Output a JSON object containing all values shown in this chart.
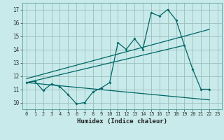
{
  "xlabel": "Humidex (Indice chaleur)",
  "background_color": "#c8eaea",
  "grid_color": "#9dbdbd",
  "line_color": "#006666",
  "spine_color": "#5a9a9a",
  "xlim": [
    -0.5,
    23.5
  ],
  "ylim": [
    9.5,
    17.5
  ],
  "xticks": [
    0,
    1,
    2,
    3,
    4,
    5,
    6,
    7,
    8,
    9,
    10,
    11,
    12,
    13,
    14,
    15,
    16,
    17,
    18,
    19,
    20,
    21,
    22,
    23
  ],
  "yticks": [
    10,
    11,
    12,
    13,
    14,
    15,
    16,
    17
  ],
  "line1_x": [
    0,
    1,
    2,
    3,
    4,
    5,
    6,
    7,
    8,
    9,
    10,
    11,
    12,
    13,
    14,
    15,
    16,
    17,
    18,
    19,
    20,
    21,
    22
  ],
  "line1_y": [
    11.5,
    11.6,
    10.9,
    11.4,
    11.2,
    10.6,
    9.9,
    10.0,
    10.8,
    11.1,
    11.5,
    14.5,
    14.0,
    14.8,
    14.0,
    16.75,
    16.5,
    17.0,
    16.2,
    14.3,
    12.5,
    11.0,
    11.0
  ],
  "line2_x": [
    0,
    22
  ],
  "line2_y": [
    11.5,
    10.2
  ],
  "line3_x": [
    0,
    22
  ],
  "line3_y": [
    11.8,
    15.5
  ],
  "line4_x": [
    0,
    19
  ],
  "line4_y": [
    11.5,
    14.3
  ]
}
